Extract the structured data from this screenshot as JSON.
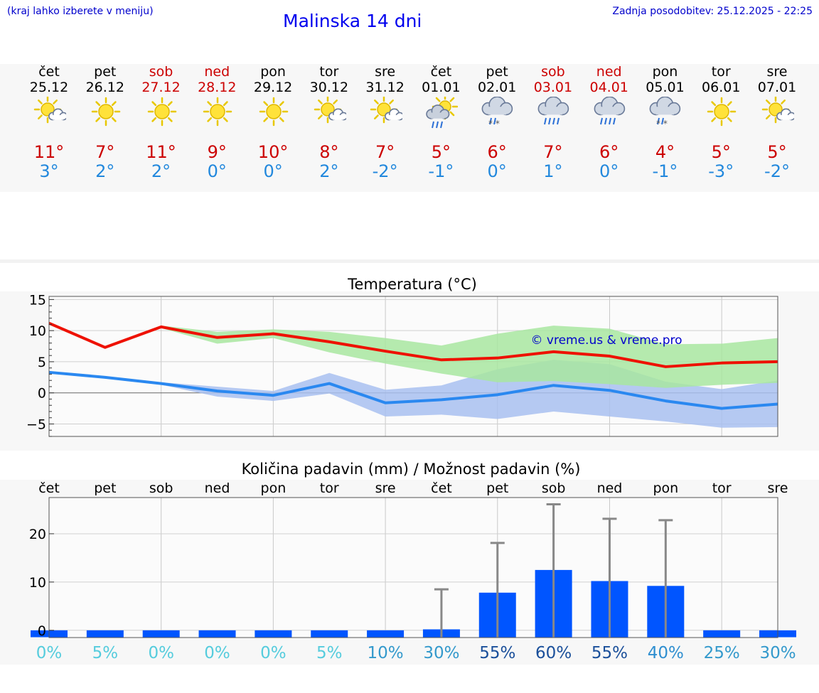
{
  "header": {
    "hint": "(kraj lahko izberete v meniju)",
    "title": "Malinska 14 dni",
    "updated": "Zadnja posodobitev: 25.12.2025 - 22:25"
  },
  "days": [
    {
      "name": "čet",
      "date": "25.12",
      "weekend": false,
      "icon": "partly-sunny-icon",
      "max": "11°",
      "min": "3°"
    },
    {
      "name": "pet",
      "date": "26.12",
      "weekend": false,
      "icon": "sunny-icon",
      "max": "7°",
      "min": "2°"
    },
    {
      "name": "sob",
      "date": "27.12",
      "weekend": true,
      "icon": "sunny-icon",
      "max": "11°",
      "min": "2°"
    },
    {
      "name": "ned",
      "date": "28.12",
      "weekend": true,
      "icon": "sunny-icon",
      "max": "9°",
      "min": "0°"
    },
    {
      "name": "pon",
      "date": "29.12",
      "weekend": false,
      "icon": "sunny-icon",
      "max": "10°",
      "min": "0°"
    },
    {
      "name": "tor",
      "date": "30.12",
      "weekend": false,
      "icon": "partly-sunny-icon",
      "max": "8°",
      "min": "2°"
    },
    {
      "name": "sre",
      "date": "31.12",
      "weekend": false,
      "icon": "partly-sunny-icon",
      "max": "7°",
      "min": "-2°"
    },
    {
      "name": "čet",
      "date": "01.01",
      "weekend": false,
      "icon": "sun-rain-icon",
      "max": "5°",
      "min": "-1°"
    },
    {
      "name": "pet",
      "date": "02.01",
      "weekend": false,
      "icon": "rain-snow-icon",
      "max": "6°",
      "min": "0°"
    },
    {
      "name": "sob",
      "date": "03.01",
      "weekend": true,
      "icon": "rain-icon",
      "max": "7°",
      "min": "1°"
    },
    {
      "name": "ned",
      "date": "04.01",
      "weekend": true,
      "icon": "rain-icon",
      "max": "6°",
      "min": "0°"
    },
    {
      "name": "pon",
      "date": "05.01",
      "weekend": false,
      "icon": "rain-snow-icon",
      "max": "4°",
      "min": "-1°"
    },
    {
      "name": "tor",
      "date": "06.01",
      "weekend": false,
      "icon": "sunny-icon",
      "max": "5°",
      "min": "-3°"
    },
    {
      "name": "sre",
      "date": "07.01",
      "weekend": false,
      "icon": "partly-sunny-icon",
      "max": "5°",
      "min": "-2°"
    }
  ],
  "colors": {
    "max_line": "#ee1100",
    "min_line": "#2a88f0",
    "max_band": "#a8e6a0",
    "min_band": "#a8c0f0",
    "overlap_band": "#80b8a0",
    "bar": "#0055ff",
    "whisker": "#888888",
    "copyright": "#0000cc"
  },
  "chart_data": [
    {
      "type": "line",
      "title": "Temperatura (°C)",
      "xlabel": "",
      "ylabel": "",
      "ylim": [
        -7,
        15.5
      ],
      "yticks": [
        15,
        10,
        5,
        0,
        -5
      ],
      "ytick_labels": [
        "15",
        "10",
        "5",
        "0",
        "−5"
      ],
      "copyright": "© vreme.us & vreme.pro",
      "series": [
        {
          "name": "max",
          "values": [
            11.2,
            7.3,
            10.6,
            8.9,
            9.5,
            8.2,
            6.7,
            5.3,
            5.6,
            6.6,
            5.9,
            4.2,
            4.8,
            5.0
          ]
        },
        {
          "name": "min",
          "values": [
            3.3,
            2.5,
            1.5,
            0.3,
            -0.4,
            1.5,
            -1.6,
            -1.1,
            -0.3,
            1.2,
            0.4,
            -1.3,
            -2.5,
            -1.8
          ]
        }
      ],
      "bands": [
        {
          "name": "max-range",
          "low": [
            11.0,
            7.1,
            10.4,
            7.9,
            8.8,
            6.5,
            4.7,
            3.1,
            1.7,
            1.9,
            1.4,
            0.8,
            1.3,
            1.6
          ],
          "high": [
            11.3,
            7.4,
            10.8,
            9.8,
            10.2,
            9.8,
            8.8,
            7.6,
            9.5,
            10.8,
            10.3,
            7.8,
            7.9,
            8.8
          ]
        },
        {
          "name": "min-range",
          "low": [
            3.1,
            2.3,
            1.3,
            -0.6,
            -1.3,
            -0.1,
            -3.8,
            -3.5,
            -4.2,
            -3.0,
            -3.8,
            -4.6,
            -5.6,
            -5.5
          ],
          "high": [
            3.5,
            2.7,
            1.7,
            1.0,
            0.3,
            3.2,
            0.5,
            1.2,
            3.8,
            5.3,
            4.6,
            1.8,
            0.6,
            2.0
          ]
        }
      ]
    },
    {
      "type": "bar",
      "title": "Količina padavin (mm) / Možnost padavin (%)",
      "categories": [
        "čet",
        "pet",
        "sob",
        "ned",
        "pon",
        "tor",
        "sre",
        "čet",
        "pet",
        "sob",
        "ned",
        "pon",
        "tor",
        "sre"
      ],
      "values": [
        0,
        0,
        0,
        0,
        0,
        0,
        0,
        0.2,
        7.8,
        12.5,
        10.2,
        9.2,
        0,
        0
      ],
      "error_high": [
        0,
        0,
        0,
        0,
        0,
        0,
        0,
        8.5,
        18.1,
        26.1,
        23.1,
        22.8,
        0,
        0
      ],
      "probability": [
        "0%",
        "5%",
        "0%",
        "0%",
        "0%",
        "5%",
        "10%",
        "30%",
        "55%",
        "60%",
        "55%",
        "40%",
        "25%",
        "30%"
      ],
      "ylim": [
        -1.5,
        27.5
      ],
      "yticks": [
        20,
        10,
        0
      ],
      "ytick_labels": [
        "20",
        "10",
        "0"
      ]
    }
  ]
}
